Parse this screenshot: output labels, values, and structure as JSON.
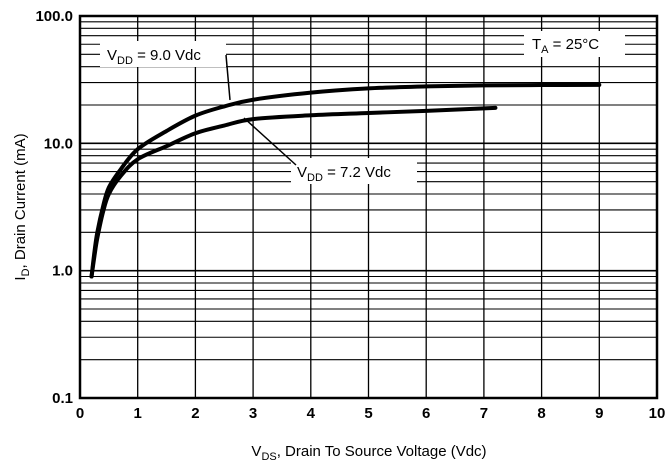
{
  "chart_data": {
    "type": "line",
    "xlabel": {
      "main": "V",
      "sub": "DS",
      "rest": ", Drain To Source Voltage (Vdc)"
    },
    "ylabel": {
      "main": "I",
      "sub": "D",
      "rest": ", Drain Current (mA)"
    },
    "xlim": [
      0,
      10
    ],
    "ylim": [
      0.1,
      100
    ],
    "yscale": "log",
    "grid": true,
    "x_ticks": [
      0,
      1,
      2,
      3,
      4,
      5,
      6,
      7,
      8,
      9,
      10
    ],
    "x_tick_labels": [
      "0",
      "1",
      "2",
      "3",
      "4",
      "5",
      "6",
      "7",
      "8",
      "9",
      "10"
    ],
    "y_ticks": [
      0.1,
      1,
      10,
      100
    ],
    "y_tick_labels": [
      "0.1",
      "1.0",
      "10.0",
      "100.0"
    ],
    "series": [
      {
        "label": {
          "main": "V",
          "sub": "DD",
          "rest": " = 9.0 Vdc"
        },
        "x": [
          0.2,
          0.25,
          0.3,
          0.4,
          0.5,
          0.7,
          1.0,
          1.5,
          2.0,
          2.5,
          3.0,
          4.0,
          5.0,
          6.0,
          7.0,
          8.0,
          9.0
        ],
        "y": [
          0.9,
          1.4,
          2.0,
          3.2,
          4.5,
          6.2,
          9.0,
          12.5,
          16.5,
          19.5,
          22.0,
          25.0,
          27.0,
          28.0,
          28.5,
          28.7,
          28.8
        ]
      },
      {
        "label": {
          "main": "V",
          "sub": "DD",
          "rest": " = 7.2 Vdc"
        },
        "x": [
          0.2,
          0.25,
          0.3,
          0.4,
          0.5,
          0.7,
          1.0,
          1.5,
          2.0,
          2.5,
          3.0,
          4.0,
          5.0,
          6.0,
          7.2
        ],
        "y": [
          0.9,
          1.3,
          1.8,
          2.9,
          4.0,
          5.5,
          7.5,
          9.5,
          12.0,
          13.8,
          15.5,
          16.6,
          17.3,
          18.0,
          19.0
        ]
      }
    ],
    "annotation": {
      "main": "T",
      "sub": "A",
      "rest": " = 25°C"
    }
  }
}
